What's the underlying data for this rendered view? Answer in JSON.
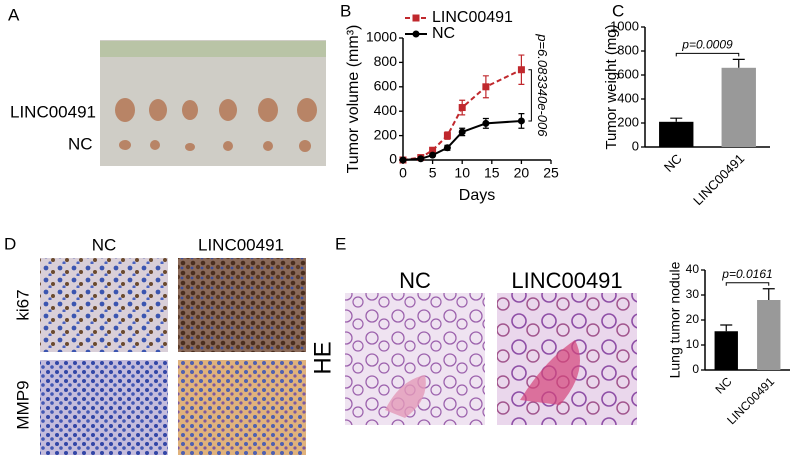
{
  "panels": {
    "A": {
      "letter": "A",
      "row_labels": [
        "LINC00491",
        "NC"
      ]
    },
    "B": {
      "letter": "B"
    },
    "C": {
      "letter": "C"
    },
    "D": {
      "letter": "D",
      "col_labels": [
        "NC",
        "LINC00491"
      ],
      "row_labels": [
        "ki67",
        "MMP9"
      ]
    },
    "E": {
      "letter": "E",
      "col_labels": [
        "NC",
        "LINC00491"
      ],
      "row_label": "HE"
    }
  },
  "chart_data": [
    {
      "type": "line",
      "x_label": "Days",
      "y_label": "Tumor volume (mm³)",
      "x": [
        0,
        3,
        5,
        7.5,
        10,
        14,
        20
      ],
      "series": [
        {
          "name": "LINC00491",
          "color": "#c0282d",
          "linestyle": "dashed",
          "marker": "square",
          "values": [
            0,
            20,
            80,
            200,
            430,
            600,
            740
          ],
          "errors": [
            0,
            10,
            20,
            30,
            60,
            90,
            120
          ]
        },
        {
          "name": "NC",
          "color": "#000000",
          "linestyle": "solid",
          "marker": "circle",
          "values": [
            0,
            10,
            40,
            100,
            230,
            300,
            320
          ],
          "errors": [
            0,
            5,
            10,
            20,
            30,
            40,
            60
          ]
        }
      ],
      "xlim": [
        0,
        25
      ],
      "xticks": [
        0,
        5,
        10,
        15,
        20,
        25
      ],
      "ylim": [
        0,
        1000
      ],
      "yticks": [
        0,
        200,
        400,
        600,
        800,
        1000
      ],
      "annotation": "p=6.083340e-006"
    },
    {
      "type": "bar",
      "y_label": "Tumor weight (mg)",
      "categories": [
        "NC",
        "LINC00491"
      ],
      "values": [
        210,
        660
      ],
      "errors": [
        30,
        70
      ],
      "colors": [
        "#000000",
        "#999999"
      ],
      "ylim": [
        0,
        1000
      ],
      "yticks": [
        0,
        200,
        400,
        600,
        800,
        1000
      ],
      "annotation": "p=0.0009"
    },
    {
      "type": "bar",
      "y_label": "Lung tumor nodule",
      "categories": [
        "NC",
        "LINC00491"
      ],
      "values": [
        15.5,
        28
      ],
      "errors": [
        2.5,
        4.5
      ],
      "colors": [
        "#000000",
        "#999999"
      ],
      "ylim": [
        0,
        40
      ],
      "yticks": [
        0,
        10,
        20,
        30,
        40
      ],
      "annotation": "p=0.0161"
    }
  ]
}
